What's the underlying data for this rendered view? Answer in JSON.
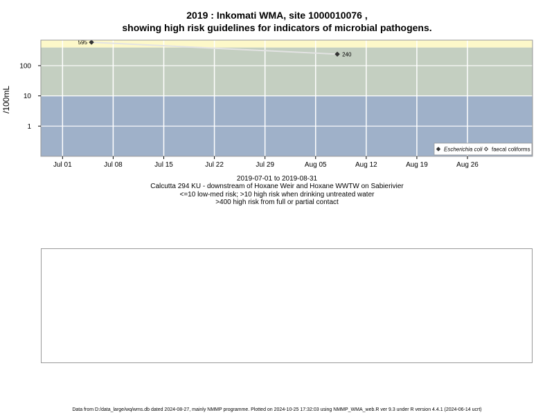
{
  "header": {
    "title_line1": "2019 : Inkomati WMA, site 1000010076 ,",
    "title_line2": "showing high risk guidelines for indicators of microbial pathogens."
  },
  "captions": {
    "date_range": "2019-07-01 to 2019-08-31",
    "site_description": "Calcutta 294 KU - downstream of Hoxane Weir and Hoxane WWTW on Sabierivier",
    "guideline_1": "<=10 low-med risk; >10 high risk when drinking untreated water",
    "guideline_2": ">400 high risk from full or partial contact"
  },
  "footer": {
    "text": "Data from D:/data_large/wq/wms.db dated 2024-08-27, mainly NMMP programme. Plotted on 2024-10-25 17:32:03 using NMMP_WMA_web.R ver 9.3 under R version 4.4.1 (2024-06-14 ucrt)"
  },
  "chart_data": {
    "type": "line",
    "ylabel": "/100mL",
    "y_scale": "log",
    "ylim": [
      0.1,
      700
    ],
    "y_ticks": [
      {
        "value": 1,
        "label": "1"
      },
      {
        "value": 10,
        "label": "10"
      },
      {
        "value": 100,
        "label": "100"
      }
    ],
    "xlim": [
      "2019-06-28",
      "2019-09-04"
    ],
    "x_ticks": [
      {
        "date": "2019-07-01",
        "label": "Jul 01"
      },
      {
        "date": "2019-07-08",
        "label": "Jul 08"
      },
      {
        "date": "2019-07-15",
        "label": "Jul 15"
      },
      {
        "date": "2019-07-22",
        "label": "Jul 22"
      },
      {
        "date": "2019-07-29",
        "label": "Jul 29"
      },
      {
        "date": "2019-08-05",
        "label": "Aug 05"
      },
      {
        "date": "2019-08-12",
        "label": "Aug 12"
      },
      {
        "date": "2019-08-19",
        "label": "Aug 19"
      },
      {
        "date": "2019-08-26",
        "label": "Aug 26"
      }
    ],
    "grid": true,
    "risk_bands": [
      {
        "from": 0.1,
        "to": 10,
        "color": "#9fb1c9"
      },
      {
        "from": 10,
        "to": 400,
        "color": "#c4cfc1"
      },
      {
        "from": 400,
        "to": 700,
        "color": "#fdf8c9"
      }
    ],
    "series": [
      {
        "name": "Escherichia coli",
        "marker": "filled-diamond",
        "color": "#333333",
        "points": [
          {
            "date": "2019-07-05",
            "value": 595,
            "label": "595"
          },
          {
            "date": "2019-08-08",
            "value": 240,
            "label": "240"
          }
        ]
      },
      {
        "name": "faecal coliforms",
        "marker": "open-diamond",
        "color": "#333333",
        "points": []
      }
    ],
    "line_color": "#e3e3e3",
    "legend": {
      "placement": "bottom-right",
      "entries": [
        "Escherichia coli",
        "faecal coliforms"
      ]
    }
  }
}
